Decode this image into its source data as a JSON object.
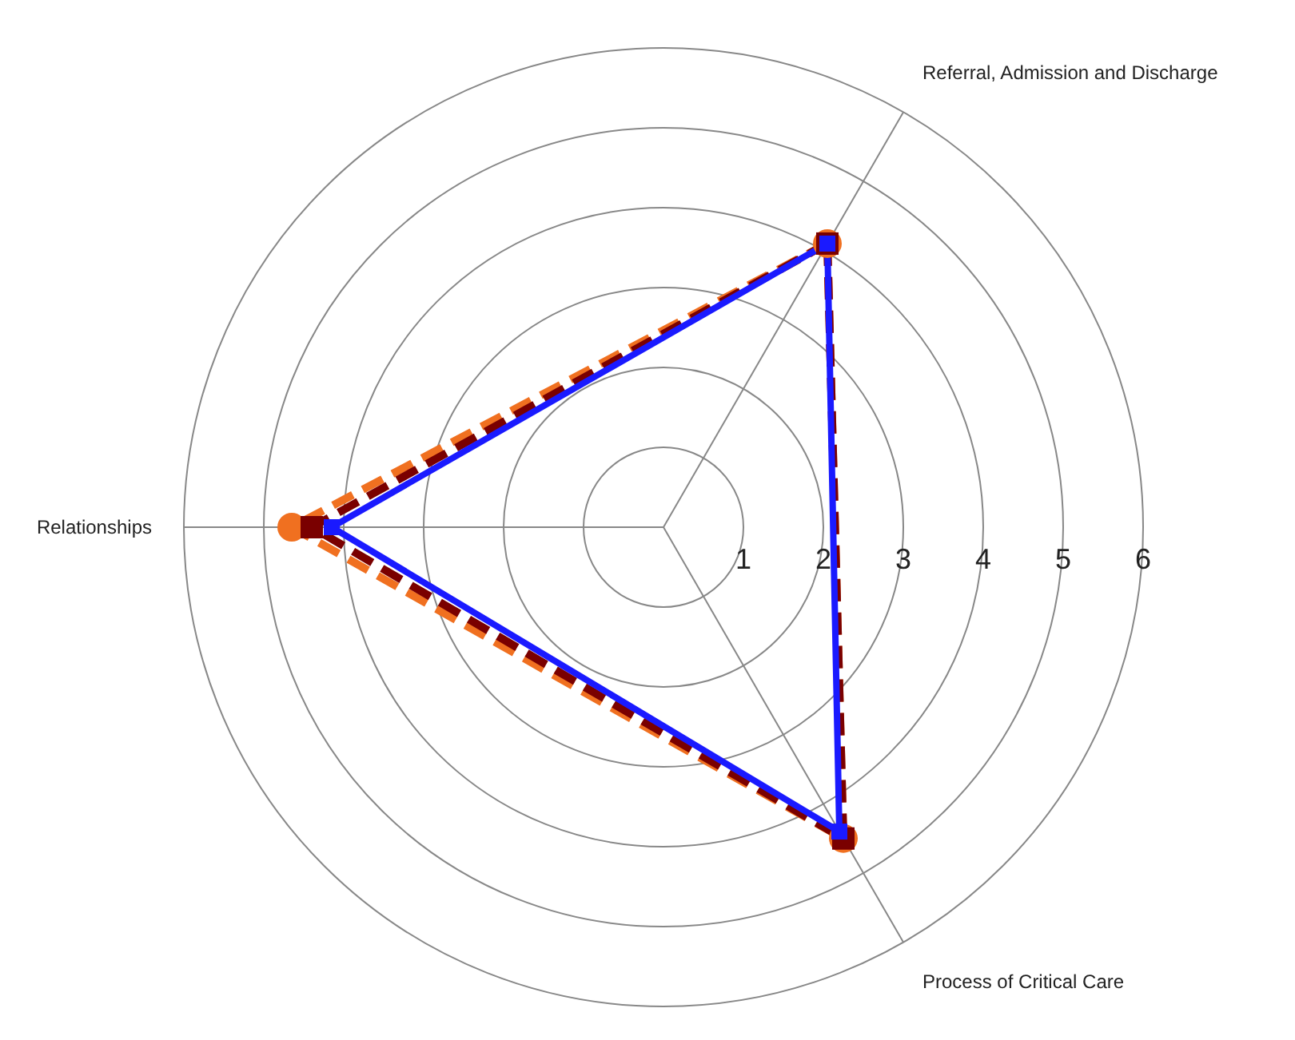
{
  "chart_data": {
    "type": "radar",
    "categories": [
      "Referral, Admission and Discharge",
      "Process of Critical Care",
      "Relationships"
    ],
    "ylim": [
      0,
      6
    ],
    "yticks": [
      1,
      2,
      3,
      4,
      5,
      6
    ],
    "grid": true,
    "legend": false,
    "series": [
      {
        "color": "#1a1aff",
        "line_style": "solid",
        "marker": "square",
        "values": [
          4.1,
          4.4,
          4.15
        ]
      },
      {
        "color": "#7a0000",
        "line_style": "dashed",
        "marker": "square",
        "values": [
          4.1,
          4.5,
          4.4
        ]
      },
      {
        "color": "#f07020",
        "line_style": "dashed",
        "marker": "circle",
        "values": [
          4.1,
          4.5,
          4.65
        ]
      }
    ]
  }
}
